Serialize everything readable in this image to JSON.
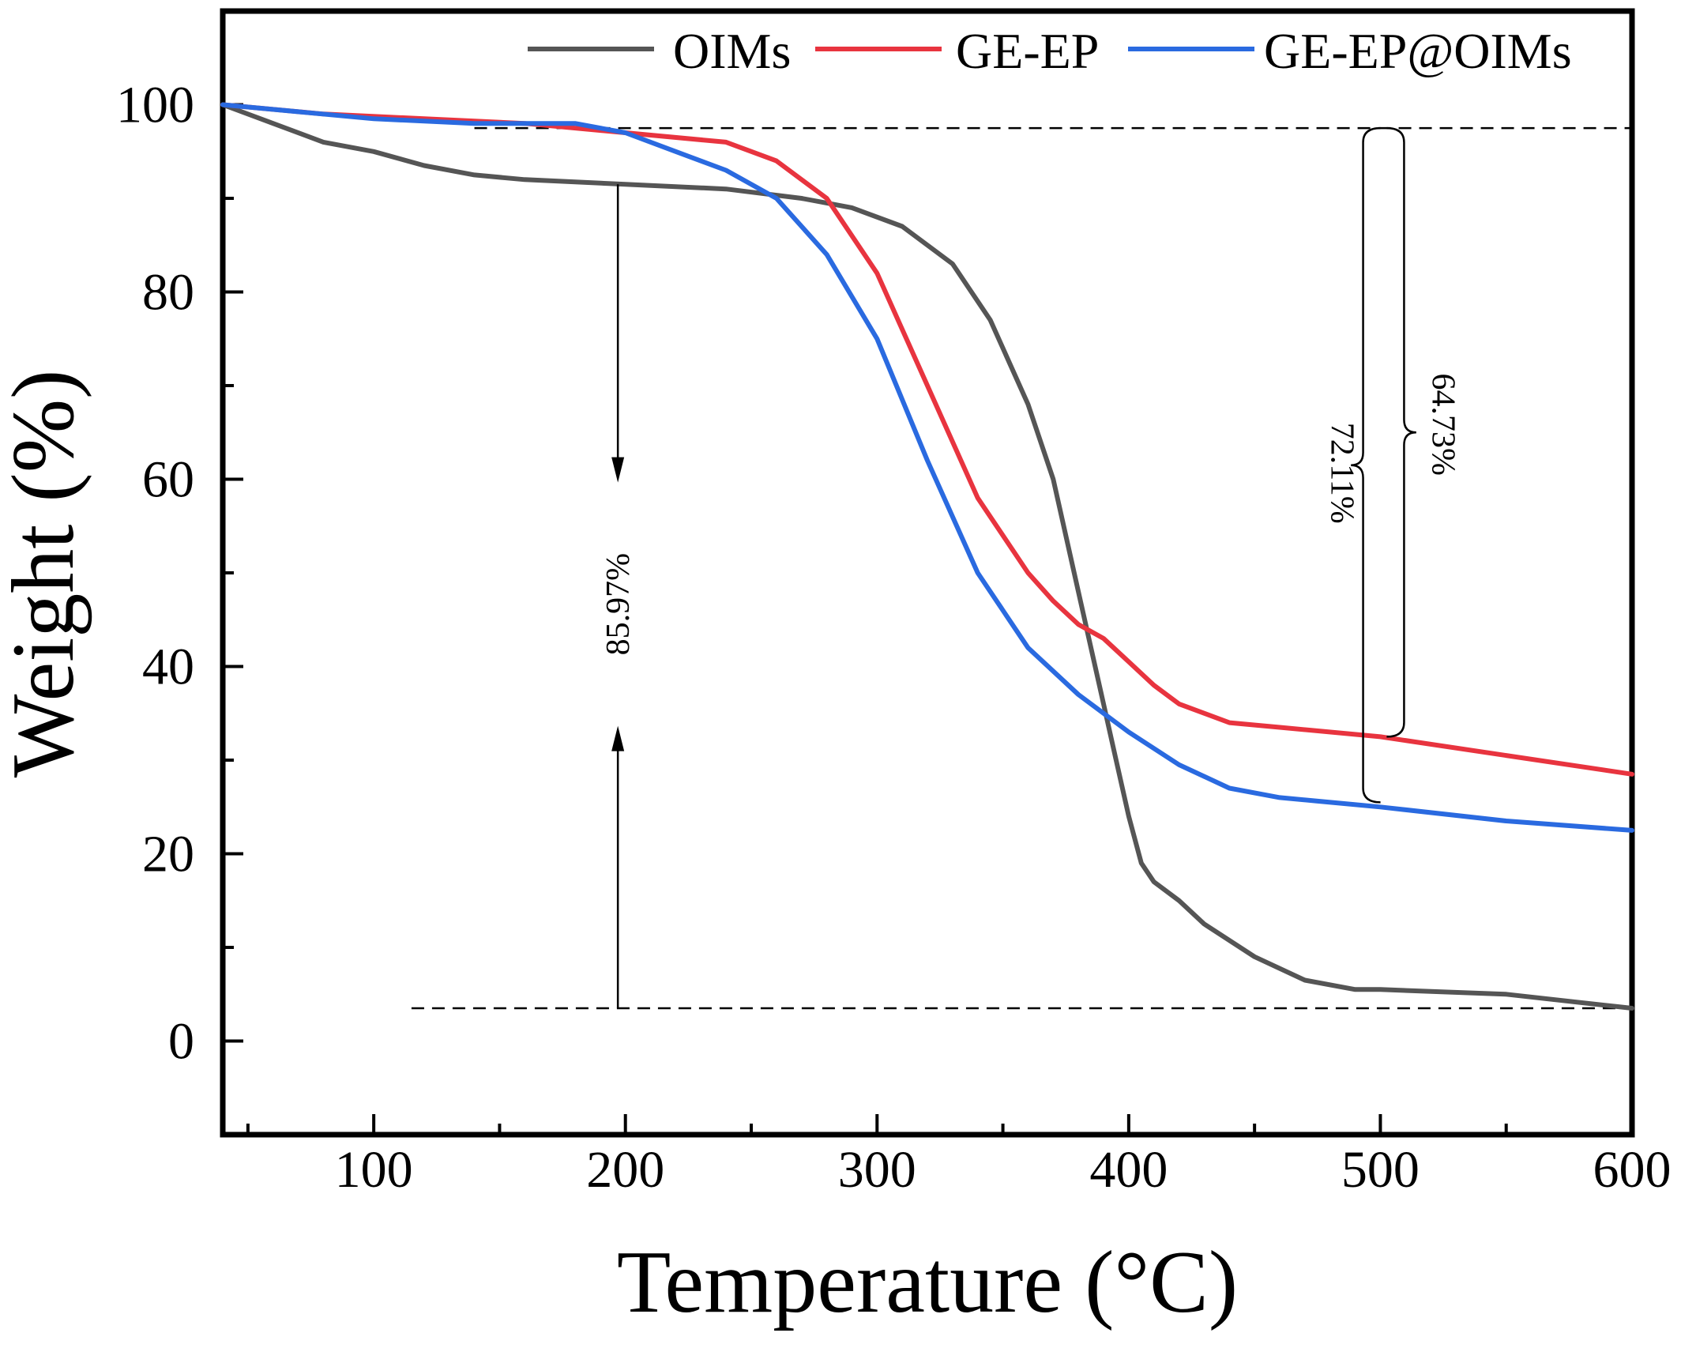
{
  "chart_data": {
    "type": "line",
    "title": "",
    "xlabel": "Temperature (°C)",
    "ylabel": "Weight (%)",
    "xlim": [
      40,
      600
    ],
    "ylim": [
      -10,
      110
    ],
    "xticks": [
      100,
      200,
      300,
      400,
      500,
      600
    ],
    "yticks": [
      0,
      20,
      40,
      60,
      80,
      100
    ],
    "grid": false,
    "legend_position": "top",
    "series": [
      {
        "name": "OIMs",
        "color": "#555555",
        "x": [
          40,
          60,
          80,
          100,
          120,
          140,
          160,
          200,
          240,
          270,
          290,
          310,
          330,
          345,
          360,
          370,
          380,
          390,
          395,
          400,
          405,
          410,
          420,
          430,
          450,
          470,
          490,
          500,
          550,
          600
        ],
        "y": [
          100,
          98,
          96,
          95,
          93.5,
          92.5,
          92,
          91.5,
          91,
          90,
          89,
          87,
          83,
          77,
          68,
          60,
          48,
          36,
          30,
          24,
          19,
          17,
          15,
          12.5,
          9,
          6.5,
          5.5,
          5.5,
          5,
          3.5
        ]
      },
      {
        "name": "GE-EP",
        "color": "#e8343f",
        "x": [
          40,
          80,
          120,
          160,
          200,
          240,
          260,
          280,
          300,
          320,
          340,
          360,
          370,
          380,
          390,
          400,
          410,
          420,
          440,
          460,
          500,
          550,
          600
        ],
        "y": [
          100,
          99,
          98.5,
          98,
          97,
          96,
          94,
          90,
          82,
          70,
          58,
          50,
          47,
          44.5,
          43,
          40.5,
          38,
          36,
          34,
          33.5,
          32.5,
          30.5,
          28.5
        ]
      },
      {
        "name": "GE-EP@OIMs",
        "color": "#2a6ae0",
        "x": [
          40,
          100,
          140,
          180,
          200,
          220,
          240,
          260,
          270,
          280,
          300,
          320,
          340,
          360,
          380,
          400,
          420,
          440,
          460,
          500,
          550,
          600
        ],
        "y": [
          100,
          98.5,
          98,
          98,
          97,
          95,
          93,
          90,
          87,
          84,
          75,
          62,
          50,
          42,
          37,
          33,
          29.5,
          27,
          26,
          25,
          23.5,
          22.5
        ]
      }
    ],
    "annotations": [
      {
        "label": "85.97%",
        "x": 197,
        "y_from": 91.5,
        "y_to": 3.5
      },
      {
        "label": "72.11%",
        "x": 490,
        "y_from": 97.5,
        "y_to": 25.5
      },
      {
        "label": "64.73%",
        "x": 500,
        "y_from": 97.5,
        "y_to": 32.5
      }
    ],
    "reference_lines": [
      {
        "y": 97.5,
        "x_from": 140,
        "x_to": 600,
        "style": "dashed"
      },
      {
        "y": 3.5,
        "x_from": 115,
        "x_to": 600,
        "style": "dashed"
      }
    ]
  }
}
